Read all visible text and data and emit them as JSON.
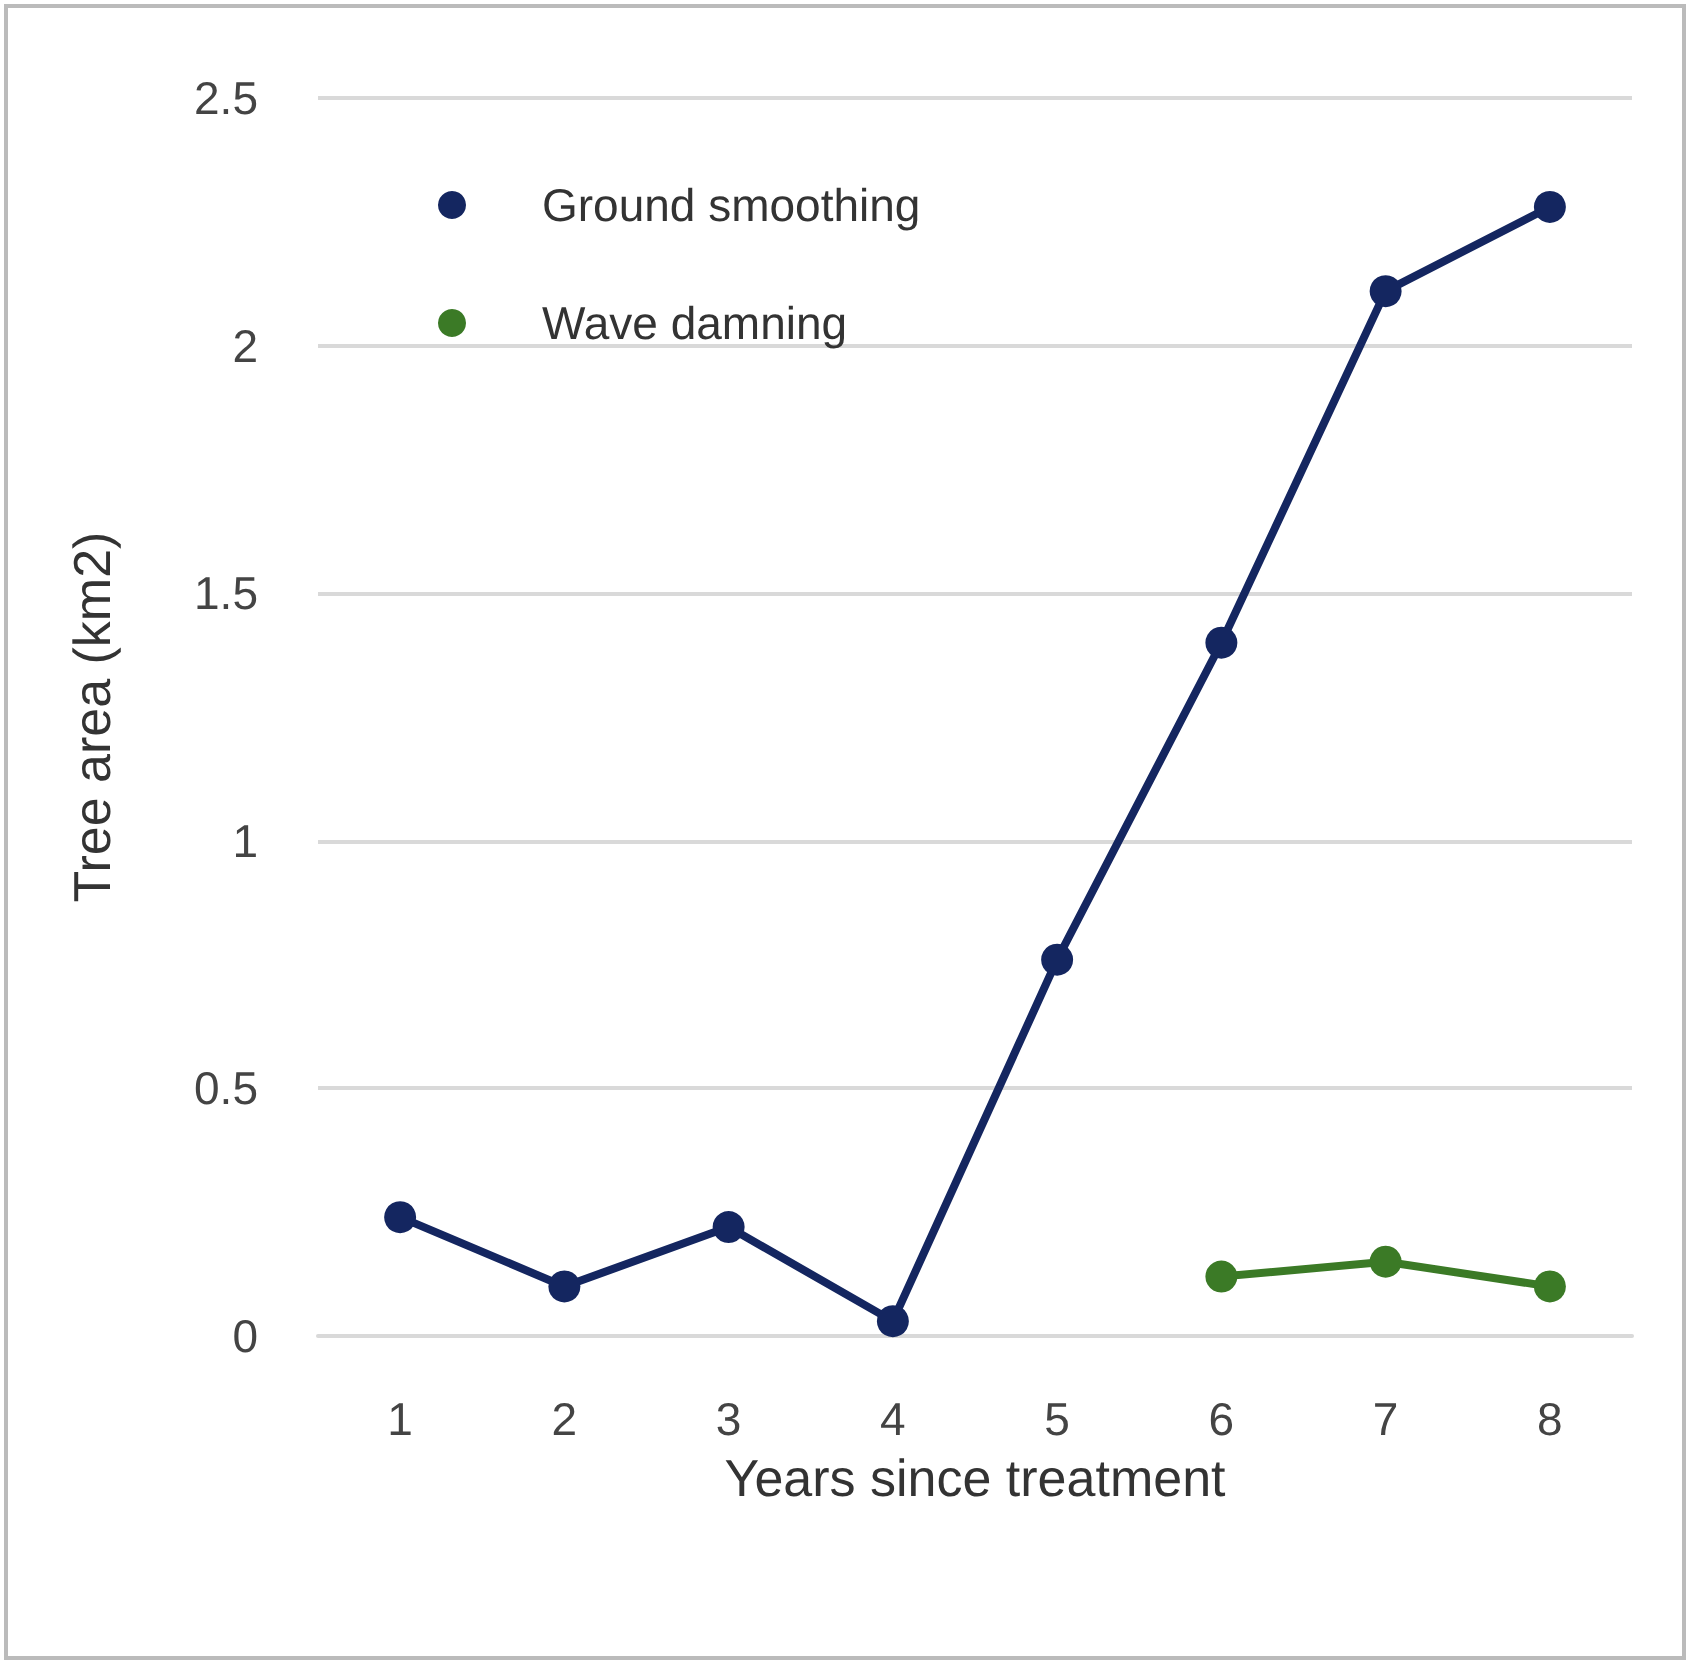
{
  "chart_data": {
    "type": "line",
    "xlabel": "Years since treatment",
    "ylabel": "Tree area (km2)",
    "categories": [
      "1",
      "2",
      "3",
      "4",
      "5",
      "6",
      "7",
      "8"
    ],
    "series": [
      {
        "name": "Ground smoothing",
        "color": "#142660",
        "values": [
          0.24,
          0.1,
          0.22,
          0.03,
          0.76,
          1.4,
          2.11,
          2.28
        ]
      },
      {
        "name": "Wave damning",
        "color": "#3b7a26",
        "values": [
          null,
          null,
          null,
          null,
          null,
          0.12,
          0.15,
          0.1
        ]
      }
    ],
    "ylim": [
      0,
      2.5
    ],
    "yticks": [
      0,
      0.5,
      1,
      1.5,
      2,
      2.5
    ],
    "grid": "y",
    "legend": "top left",
    "marker": "circle",
    "line_style": "solid"
  }
}
